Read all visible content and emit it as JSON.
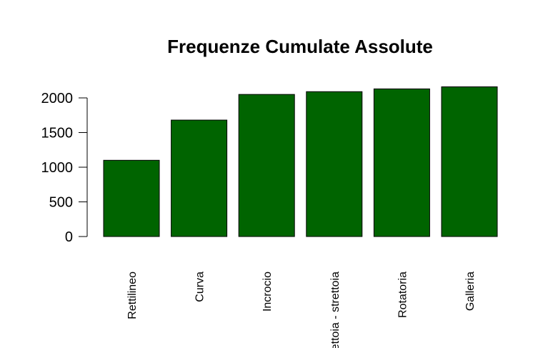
{
  "chart_data": {
    "type": "bar",
    "title": "Frequenze Cumulate Assolute",
    "xlabel": "",
    "ylabel": "",
    "categories": [
      "Rettilineo",
      "Curva",
      "Incrocio",
      "Strettoia - strettoia",
      "Rotatoria",
      "Galleria"
    ],
    "values": [
      1100,
      1680,
      2050,
      2090,
      2130,
      2160
    ],
    "yticks": [
      0,
      500,
      1000,
      1500,
      2000
    ],
    "ylim": [
      0,
      2200
    ],
    "bar_color": "#006400",
    "grid": false,
    "legend": "none"
  }
}
